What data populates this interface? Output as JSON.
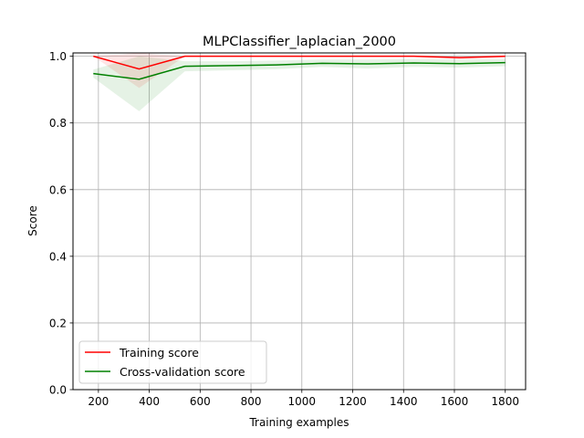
{
  "chart_data": {
    "type": "line",
    "title": "MLPClassifier_laplacian_2000",
    "xlabel": "Training examples",
    "ylabel": "Score",
    "xlim": [
      100,
      1880
    ],
    "ylim": [
      0.0,
      1.01
    ],
    "xticks": [
      200,
      400,
      600,
      800,
      1000,
      1200,
      1400,
      1600,
      1800
    ],
    "yticks": [
      0.0,
      0.2,
      0.4,
      0.6,
      0.8,
      1.0
    ],
    "grid": true,
    "legend_position": "lower-left",
    "x": [
      180,
      360,
      540,
      720,
      900,
      1080,
      1260,
      1440,
      1620,
      1800
    ],
    "series": [
      {
        "name": "Training score",
        "color": "#ff0000",
        "values": [
          1.0,
          0.962,
          1.0,
          1.0,
          1.0,
          1.0,
          1.0,
          1.0,
          0.996,
          1.0
        ],
        "upper": [
          1.0,
          1.01,
          1.0,
          1.0,
          1.0,
          1.0,
          1.0,
          1.0,
          1.0,
          1.0
        ],
        "lower": [
          1.0,
          0.905,
          1.0,
          1.0,
          0.999,
          1.0,
          0.998,
          0.999,
          0.99,
          0.996
        ]
      },
      {
        "name": "Cross-validation score",
        "color": "#008000",
        "values": [
          0.948,
          0.931,
          0.97,
          0.972,
          0.974,
          0.979,
          0.977,
          0.98,
          0.978,
          0.981
        ],
        "upper": [
          0.96,
          1.0,
          0.985,
          0.985,
          0.987,
          0.99,
          0.99,
          0.992,
          0.99,
          0.992
        ],
        "lower": [
          0.936,
          0.835,
          0.955,
          0.958,
          0.961,
          0.968,
          0.963,
          0.968,
          0.966,
          0.97
        ]
      }
    ]
  }
}
